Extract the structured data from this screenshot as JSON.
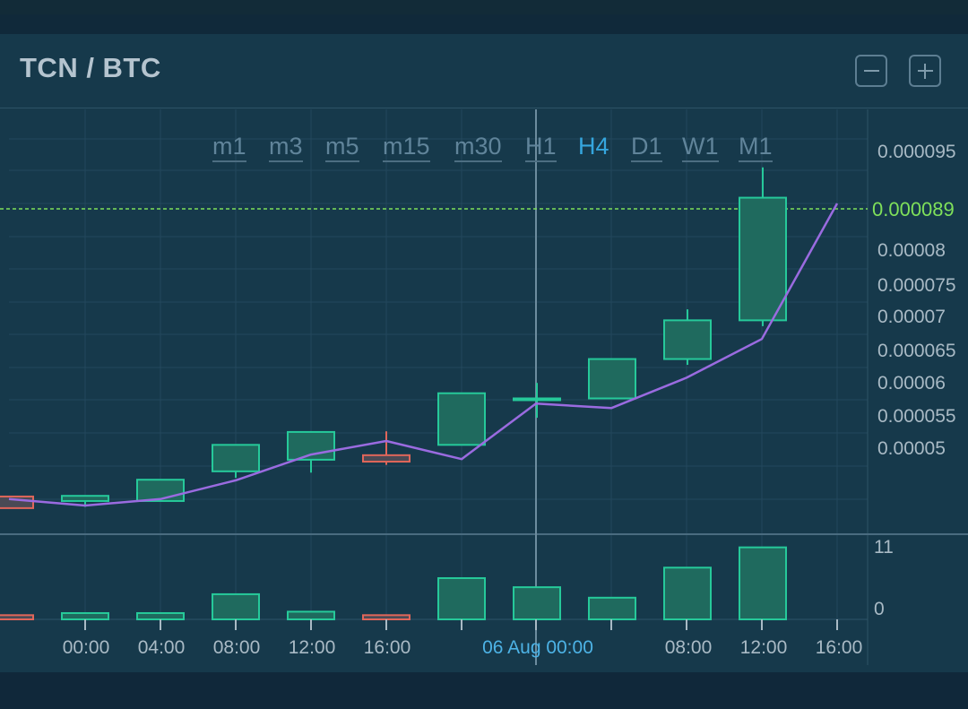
{
  "pair_title": "TCN / BTC",
  "zoom": {
    "out_icon": "minus-icon",
    "in_icon": "plus-icon"
  },
  "timeframes": [
    {
      "label": "m1",
      "active": false
    },
    {
      "label": "m3",
      "active": false
    },
    {
      "label": "m5",
      "active": false
    },
    {
      "label": "m15",
      "active": false
    },
    {
      "label": "m30",
      "active": false
    },
    {
      "label": "H1",
      "active": false
    },
    {
      "label": "H4",
      "active": true
    },
    {
      "label": "D1",
      "active": false
    },
    {
      "label": "W1",
      "active": false
    },
    {
      "label": "M1",
      "active": false
    }
  ],
  "colors": {
    "up": "#26c99a",
    "up_fill": "#1f6a5e",
    "down": "#e0665a",
    "down_fill": "#4a4a55",
    "line": "#9a6be0",
    "current_price": "#7fe05a",
    "axis_text": "#a9bac5",
    "highlight_text": "#4db3e6"
  },
  "chart_data": {
    "type": "candlestick",
    "price_ticks": [
      "0.000095",
      "0.00008",
      "0.000075",
      "0.00007",
      "0.000065",
      "0.00006",
      "0.000055",
      "0.00005"
    ],
    "current_price_label": "0.000089",
    "current_price": 8.9e-05,
    "time_labels": [
      "00:00",
      "04:00",
      "08:00",
      "12:00",
      "16:00",
      "06 Aug 00:00",
      "08:00",
      "12:00",
      "16:00"
    ],
    "highlight_time_label": "06 Aug 00:00",
    "volume_ticks": [
      "11",
      "0"
    ],
    "candles": [
      {
        "open": 4.44e-05,
        "close": 4.26e-05,
        "high": 4.44e-05,
        "low": 4.26e-05
      },
      {
        "open": 4.37e-05,
        "close": 4.45e-05,
        "high": 4.45e-05,
        "low": 4.28e-05
      },
      {
        "open": 4.37e-05,
        "close": 4.7e-05,
        "high": 4.7e-05,
        "low": 4.37e-05
      },
      {
        "open": 4.83e-05,
        "close": 5.24e-05,
        "high": 5.24e-05,
        "low": 4.73e-05
      },
      {
        "open": 5.01e-05,
        "close": 5.44e-05,
        "high": 5.44e-05,
        "low": 4.81e-05
      },
      {
        "open": 5.08e-05,
        "close": 4.98e-05,
        "high": 5.45e-05,
        "low": 4.93e-05
      },
      {
        "open": 5.24e-05,
        "close": 6.04e-05,
        "high": 6.04e-05,
        "low": 5.24e-05
      },
      {
        "open": 5.96e-05,
        "close": 5.96e-05,
        "high": 6.2e-05,
        "low": 5.66e-05
      },
      {
        "open": 5.96e-05,
        "close": 6.57e-05,
        "high": 6.57e-05,
        "low": 5.96e-05
      },
      {
        "open": 6.57e-05,
        "close": 7.17e-05,
        "high": 7.34e-05,
        "low": 6.48e-05
      },
      {
        "open": 7.17e-05,
        "close": 9.07e-05,
        "high": 9.54e-05,
        "low": 7.08e-05
      }
    ],
    "line": [
      4.4e-05,
      4.3e-05,
      4.4e-05,
      4.69e-05,
      5.09e-05,
      5.3e-05,
      5.02e-05,
      5.88e-05,
      5.81e-05,
      6.28e-05,
      6.88e-05,
      8.98e-05
    ],
    "volumes": [
      0.6,
      0.9,
      0.9,
      3.6,
      1.1,
      0.6,
      5.9,
      4.6,
      3.1,
      7.4,
      10.3
    ]
  }
}
